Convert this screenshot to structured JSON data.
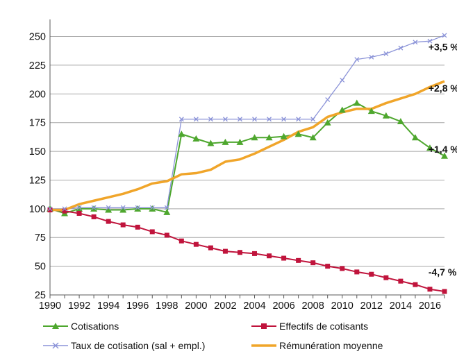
{
  "chart_data": {
    "type": "line",
    "x": [
      1990,
      1991,
      1992,
      1993,
      1994,
      1995,
      1996,
      1997,
      1998,
      1999,
      2000,
      2001,
      2002,
      2003,
      2004,
      2005,
      2006,
      2007,
      2008,
      2009,
      2010,
      2011,
      2012,
      2013,
      2014,
      2015,
      2016,
      2017
    ],
    "x_ticks": [
      "1990",
      "1992",
      "1994",
      "1996",
      "1998",
      "2000",
      "2002",
      "2004",
      "2006",
      "2008",
      "2010",
      "2012",
      "2014",
      "2016"
    ],
    "ylim": [
      25,
      260
    ],
    "y_ticks": [
      "25",
      "50",
      "75",
      "100",
      "125",
      "150",
      "175",
      "200",
      "225",
      "250"
    ],
    "grid": "horizontal",
    "legend_position": "bottom",
    "series": [
      {
        "key": "cotisations",
        "name": "Cotisations",
        "color": "#4ea72e",
        "marker": "triangle",
        "values": [
          100,
          96,
          100,
          100,
          99,
          99,
          100,
          100,
          97,
          165,
          161,
          157,
          158,
          158,
          162,
          162,
          163,
          165,
          162,
          175,
          186,
          192,
          185,
          181,
          176,
          162,
          153,
          146
        ]
      },
      {
        "key": "effectifs",
        "name": "Effectifs de cotisants",
        "color": "#c0143c",
        "marker": "square",
        "values": [
          99,
          98,
          96,
          93,
          89,
          86,
          84,
          80,
          77,
          72,
          69,
          66,
          63,
          62,
          61,
          59,
          57,
          55,
          53,
          50,
          48,
          45,
          43,
          40,
          37,
          34,
          30,
          28
        ]
      },
      {
        "key": "taux",
        "name": "Taux de cotisation (sal + empl.)",
        "color": "#8b93d8",
        "marker": "x",
        "values": [
          100,
          100,
          101,
          101,
          101,
          101,
          101,
          101,
          101,
          178,
          178,
          178,
          178,
          178,
          178,
          178,
          178,
          178,
          178,
          195,
          212,
          230,
          232,
          235,
          240,
          245,
          246,
          251
        ]
      },
      {
        "key": "remuneration",
        "name": "Rémunération moyenne",
        "color": "#f0a52a",
        "marker": "none",
        "values": [
          99,
          99,
          104,
          107,
          110,
          113,
          117,
          122,
          124,
          130,
          131,
          134,
          141,
          143,
          148,
          154,
          160,
          167,
          171,
          180,
          184,
          187,
          187,
          192,
          196,
          200,
          206,
          211
        ]
      }
    ],
    "annotations": [
      {
        "text": "+3,5 %",
        "x": 2015.9,
        "y": 241
      },
      {
        "text": "+2,8 %",
        "x": 2015.9,
        "y": 205
      },
      {
        "text": "+1,4 %",
        "x": 2015.9,
        "y": 152
      },
      {
        "text": "-4,7 %",
        "x": 2015.9,
        "y": 45
      }
    ]
  }
}
